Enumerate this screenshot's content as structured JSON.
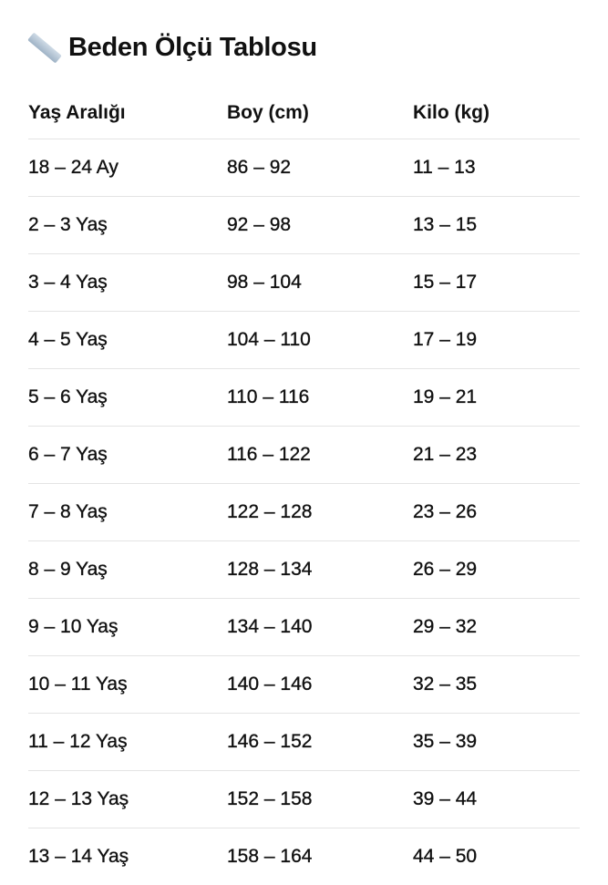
{
  "title": {
    "icon": "straight-ruler-icon",
    "text": "Beden Ölçü Tablosu"
  },
  "table": {
    "headers": [
      "Yaş Aralığı",
      "Boy (cm)",
      "Kilo (kg)"
    ],
    "rows": [
      [
        "18 – 24 Ay",
        "86 – 92",
        "11 – 13"
      ],
      [
        "2 – 3 Yaş",
        "92 – 98",
        "13 – 15"
      ],
      [
        "3 – 4 Yaş",
        "98 – 104",
        "15 – 17"
      ],
      [
        "4 – 5 Yaş",
        "104 – 110",
        "17 – 19"
      ],
      [
        "5 – 6 Yaş",
        "110 – 116",
        "19 – 21"
      ],
      [
        "6 – 7 Yaş",
        "116 – 122",
        "21 – 23"
      ],
      [
        "7 – 8 Yaş",
        "122 – 128",
        "23 – 26"
      ],
      [
        "8 – 9 Yaş",
        "128 – 134",
        "26 – 29"
      ],
      [
        "9 – 10 Yaş",
        "134 – 140",
        "29 – 32"
      ],
      [
        "10 – 11 Yaş",
        "140 – 146",
        "32 – 35"
      ],
      [
        "11 – 12 Yaş",
        "146 – 152",
        "35 – 39"
      ],
      [
        "12 – 13 Yaş",
        "152 – 158",
        "39 – 44"
      ],
      [
        "13 – 14 Yaş",
        "158 – 164",
        "44 – 50"
      ]
    ]
  }
}
